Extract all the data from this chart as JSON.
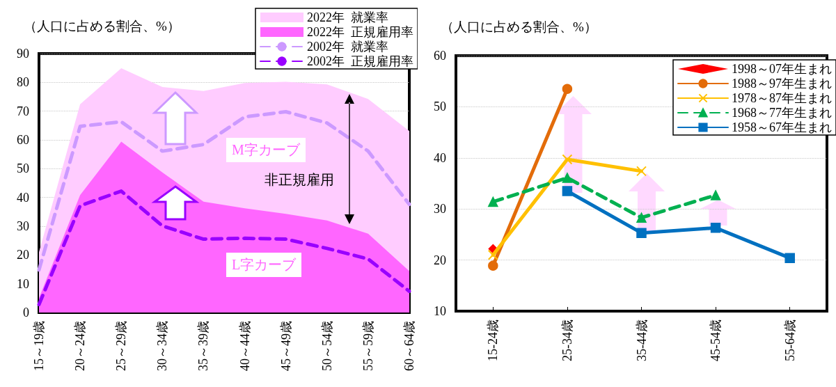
{
  "chart_data": [
    {
      "type": "area",
      "ylabel": "（人口に占める割合、%）",
      "categories": [
        "15～19歳",
        "20～24歳",
        "25～29歳",
        "30～34歳",
        "35～39歳",
        "40～44歳",
        "45～49歳",
        "50～54歳",
        "55～59歳",
        "60～64歳"
      ],
      "series": [
        {
          "name": "2022年  就業率",
          "type": "area",
          "color": "#ffccff",
          "values": [
            21,
            72.4,
            84.9,
            78.4,
            77,
            79.8,
            80.2,
            79.3,
            74.2,
            63.1
          ]
        },
        {
          "name": "2022年  正規雇用率",
          "type": "area",
          "color": "#ff66ff",
          "values": [
            5,
            40.8,
            59.4,
            48.7,
            38.5,
            36.2,
            34.3,
            32,
            27.4,
            14.4
          ]
        },
        {
          "name": "2002年  就業率",
          "type": "line",
          "line_style": "dashed",
          "color": "#cc99ff",
          "values": [
            14.8,
            64.7,
            66.3,
            56.1,
            58.4,
            68,
            69.8,
            65.9,
            56.1,
            37.6
          ]
        },
        {
          "name": "2002年  正規雇用率",
          "type": "line",
          "line_style": "dashed",
          "color": "#9900ff",
          "values": [
            2.8,
            37.1,
            42.2,
            30.1,
            25.5,
            25.8,
            25.5,
            22.3,
            18.6,
            7.4
          ]
        }
      ],
      "ylim": [
        0,
        90
      ],
      "yticks": [
        0,
        10,
        20,
        30,
        40,
        50,
        60,
        70,
        80,
        90
      ],
      "grid": "y",
      "legend": "top right",
      "marker": "none",
      "annotations": [
        "M字カーブ",
        "L字カーブ",
        "非正規雇用"
      ]
    },
    {
      "type": "line",
      "ylabel": "（人口に占める割合、%）",
      "categories": [
        "15-24歳",
        "25-34歳",
        "35-44歳",
        "45-54歳",
        "55-64歳"
      ],
      "series": [
        {
          "name": "1998～07年生まれ",
          "type": "scatter",
          "marker": "diamond",
          "color": "#ff0000",
          "values": [
            22.2,
            null,
            null,
            null,
            null
          ]
        },
        {
          "name": "1988～97年生まれ",
          "marker": "circle",
          "color": "#e36c0a",
          "values": [
            18.9,
            53.5,
            null,
            null,
            null
          ]
        },
        {
          "name": "1978～87年生まれ",
          "marker": "cross",
          "color": "#ffc000",
          "values": [
            21,
            39.7,
            37.4,
            null,
            null
          ]
        },
        {
          "name": "1968～77年生まれ",
          "marker": "triangle",
          "line_style": "dashed",
          "color": "#00b050",
          "values": [
            31.4,
            36.1,
            28.3,
            32.7,
            null
          ]
        },
        {
          "name": "1958～67年生まれ",
          "marker": "square",
          "color": "#0070c0",
          "values": [
            null,
            33.5,
            25.3,
            26.3,
            20.4
          ]
        }
      ],
      "ylim": [
        10,
        60
      ],
      "yticks": [
        10,
        20,
        30,
        40,
        50,
        60
      ],
      "grid": "y",
      "legend": "top right"
    }
  ]
}
